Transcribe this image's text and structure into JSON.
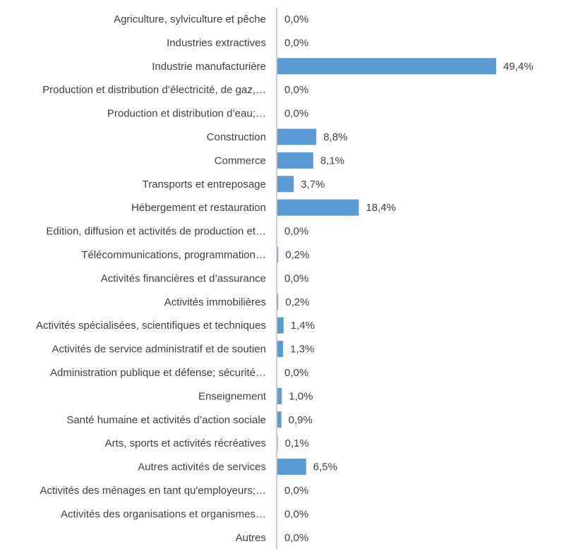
{
  "chart_data": {
    "type": "bar",
    "orientation": "horizontal",
    "title": "",
    "xlabel": "",
    "ylabel": "",
    "grid": false,
    "legend": "none",
    "bar_color": "#5B9BD5",
    "axis_color": "#BFBFBF",
    "text_color": "#404040",
    "xlim": [
      0,
      49.4
    ],
    "categories": [
      "Agriculture, sylviculture et pêche",
      "Industries extractives",
      "Industrie manufacturière",
      "Production et distribution d’électricité, de gaz,…",
      "Production et distribution d’eau;…",
      "Construction",
      "Commerce",
      "Transports et entreposage",
      "Hébergement et restauration",
      "Edition, diffusion et activités de production et…",
      "Télécommunications, programmation…",
      "Activités financières et d’assurance",
      "Activités immobilières",
      "Activités spécialisées, scientifiques et techniques",
      "Activités de service administratif et de soutien",
      "Administration publique et défense; sécurité…",
      "Enseignement",
      "Santé humaine et activités d’action sociale",
      "Arts, sports et activités récréatives",
      "Autres activités de services",
      "Activités des ménages en tant qu'employeurs;…",
      "Activités des organisations et organismes…",
      "Autres"
    ],
    "values": [
      0.0,
      0.0,
      49.4,
      0.0,
      0.0,
      8.8,
      8.1,
      3.7,
      18.4,
      0.0,
      0.2,
      0.0,
      0.2,
      1.4,
      1.3,
      0.0,
      1.0,
      0.9,
      0.1,
      6.5,
      0.0,
      0.0,
      0.0
    ],
    "value_labels": [
      "0,0%",
      "0,0%",
      "49,4%",
      "0,0%",
      "0,0%",
      "8,8%",
      "8,1%",
      "3,7%",
      "18,4%",
      "0,0%",
      "0,2%",
      "0,0%",
      "0,2%",
      "1,4%",
      "1,3%",
      "0,0%",
      "1,0%",
      "0,9%",
      "0,1%",
      "6,5%",
      "0,0%",
      "0,0%",
      "0,0%"
    ]
  }
}
